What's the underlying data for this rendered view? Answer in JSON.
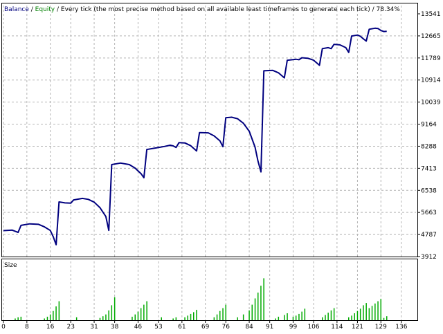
{
  "header": {
    "balance_label": "Balance",
    "sep1": " / ",
    "equity_label": "Equity",
    "sep2": " / ",
    "method": "Every tick (the most precise method based on all available least timeframes to generate each tick)",
    "sep3": " / ",
    "quality": "78.34%"
  },
  "colors": {
    "balance": "#00007f",
    "equity": "#008000",
    "size_bars": "#00aa00",
    "grid": "#b4b4b4",
    "axis": "#000000",
    "background": "#ffffff"
  },
  "volume_panel": {
    "label": "Size"
  },
  "chart_data": [
    {
      "type": "line",
      "yaxis_ticks": [
        "13541",
        "12665",
        "11789",
        "10914",
        "10039",
        "9164",
        "8288",
        "7413",
        "6538",
        "5663",
        "4787",
        "3912"
      ],
      "ylim": [
        3912,
        13541
      ],
      "xlim": [
        0,
        141
      ],
      "grid": true,
      "series": [
        {
          "name": "Balance",
          "points": [
            [
              0,
              4940
            ],
            [
              3,
              4960
            ],
            [
              5,
              4870
            ],
            [
              6,
              5150
            ],
            [
              9,
              5210
            ],
            [
              12,
              5190
            ],
            [
              14,
              5090
            ],
            [
              16,
              4950
            ],
            [
              17,
              4700
            ],
            [
              18,
              4380
            ],
            [
              19,
              6080
            ],
            [
              21,
              6040
            ],
            [
              23,
              6030
            ],
            [
              24,
              6160
            ],
            [
              27,
              6220
            ],
            [
              29,
              6180
            ],
            [
              31,
              6070
            ],
            [
              33,
              5850
            ],
            [
              35,
              5500
            ],
            [
              36,
              4950
            ],
            [
              37,
              7560
            ],
            [
              40,
              7620
            ],
            [
              43,
              7560
            ],
            [
              45,
              7420
            ],
            [
              47,
              7200
            ],
            [
              48,
              7040
            ],
            [
              49,
              8160
            ],
            [
              52,
              8220
            ],
            [
              55,
              8280
            ],
            [
              57,
              8330
            ],
            [
              58,
              8300
            ],
            [
              59,
              8240
            ],
            [
              60,
              8430
            ],
            [
              62,
              8420
            ],
            [
              64,
              8310
            ],
            [
              66,
              8100
            ],
            [
              67,
              8830
            ],
            [
              70,
              8820
            ],
            [
              72,
              8700
            ],
            [
              74,
              8500
            ],
            [
              75,
              8270
            ],
            [
              76,
              9420
            ],
            [
              78,
              9440
            ],
            [
              80,
              9380
            ],
            [
              82,
              9200
            ],
            [
              84,
              8880
            ],
            [
              86,
              8250
            ],
            [
              87,
              7700
            ],
            [
              88,
              7270
            ],
            [
              89,
              11280
            ],
            [
              92,
              11300
            ],
            [
              94,
              11200
            ],
            [
              96,
              11000
            ],
            [
              97,
              11700
            ],
            [
              100,
              11740
            ],
            [
              101,
              11720
            ],
            [
              102,
              11800
            ],
            [
              104,
              11780
            ],
            [
              106,
              11700
            ],
            [
              108,
              11500
            ],
            [
              109,
              12160
            ],
            [
              111,
              12200
            ],
            [
              112,
              12160
            ],
            [
              113,
              12330
            ],
            [
              115,
              12310
            ],
            [
              117,
              12200
            ],
            [
              118,
              12010
            ],
            [
              119,
              12660
            ],
            [
              121,
              12700
            ],
            [
              122,
              12650
            ],
            [
              123,
              12550
            ],
            [
              124,
              12460
            ],
            [
              125,
              12930
            ],
            [
              127,
              12970
            ],
            [
              128,
              12960
            ],
            [
              129,
              12880
            ],
            [
              130,
              12840
            ],
            [
              131,
              12850
            ]
          ]
        }
      ]
    },
    {
      "type": "bar",
      "x_tick_labels": [
        "0",
        "8",
        "16",
        "23",
        "31",
        "38",
        "46",
        "53",
        "61",
        "69",
        "76",
        "84",
        "91",
        "99",
        "106",
        "114",
        "121",
        "129",
        "136"
      ],
      "x_tick_values": [
        0,
        8,
        16,
        23,
        31,
        38,
        46,
        53,
        61,
        69,
        76,
        84,
        91,
        99,
        106,
        114,
        121,
        129,
        136
      ],
      "xlim": [
        0,
        141
      ],
      "ylim": [
        0,
        1
      ],
      "series": [
        {
          "name": "Size",
          "x": [
            4,
            5,
            6,
            14,
            15,
            16,
            17,
            18,
            19,
            25,
            33,
            34,
            35,
            36,
            37,
            38,
            44,
            45,
            46,
            47,
            48,
            49,
            54,
            58,
            59,
            62,
            63,
            64,
            65,
            66,
            72,
            73,
            74,
            75,
            76,
            80,
            82,
            84,
            85,
            86,
            87,
            88,
            89,
            93,
            94,
            96,
            97,
            99,
            100,
            101,
            102,
            103,
            109,
            110,
            111,
            112,
            113,
            118,
            119,
            120,
            121,
            122,
            123,
            124,
            125,
            126,
            127,
            128,
            129,
            130,
            131
          ],
          "values": [
            0.03,
            0.05,
            0.06,
            0.03,
            0.06,
            0.1,
            0.16,
            0.24,
            0.33,
            0.05,
            0.04,
            0.07,
            0.1,
            0.17,
            0.26,
            0.4,
            0.06,
            0.1,
            0.15,
            0.21,
            0.27,
            0.33,
            0.05,
            0.03,
            0.05,
            0.05,
            0.08,
            0.11,
            0.14,
            0.18,
            0.05,
            0.1,
            0.16,
            0.21,
            0.27,
            0.05,
            0.1,
            0.17,
            0.27,
            0.38,
            0.48,
            0.6,
            0.73,
            0.03,
            0.06,
            0.09,
            0.12,
            0.06,
            0.08,
            0.11,
            0.15,
            0.2,
            0.05,
            0.09,
            0.13,
            0.17,
            0.21,
            0.05,
            0.08,
            0.12,
            0.16,
            0.2,
            0.26,
            0.3,
            0.21,
            0.25,
            0.29,
            0.33,
            0.37,
            0.04,
            0.07
          ]
        }
      ]
    }
  ]
}
